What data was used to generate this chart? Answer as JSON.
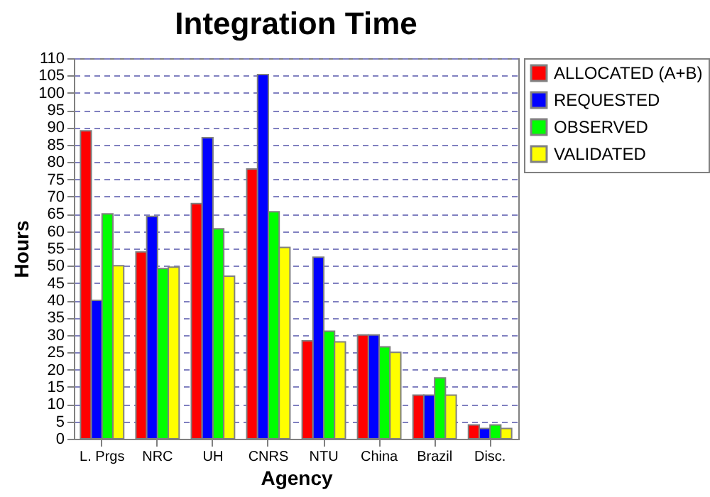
{
  "chart_data": {
    "type": "bar",
    "title": "Integration Time",
    "xlabel": "Agency",
    "ylabel": "Hours",
    "categories": [
      "L. Prgs",
      "NRC",
      "UH",
      "CNRS",
      "NTU",
      "China",
      "Brazil",
      "Disc."
    ],
    "series": [
      {
        "name": "ALLOCATED (A+B)",
        "color": "#ff0000",
        "values": [
          89,
          54,
          68,
          78,
          28.3,
          30,
          12.6,
          4
        ]
      },
      {
        "name": "REQUESTED",
        "color": "#0000ff",
        "values": [
          40,
          64.3,
          87,
          105.3,
          52.5,
          30,
          12.6,
          3
        ]
      },
      {
        "name": "OBSERVED",
        "color": "#00ff00",
        "values": [
          65,
          49.2,
          60.7,
          65.6,
          31.1,
          26.6,
          17.6,
          4
        ]
      },
      {
        "name": "VALIDATED",
        "color": "#ffff00",
        "values": [
          50,
          49.6,
          47,
          55.3,
          28,
          25,
          12.6,
          3
        ]
      }
    ],
    "ylim": [
      0,
      110
    ],
    "yticks": [
      0,
      5,
      10,
      15,
      20,
      25,
      30,
      35,
      40,
      45,
      50,
      55,
      60,
      65,
      70,
      75,
      80,
      85,
      90,
      95,
      100,
      105,
      110
    ],
    "grid": "y",
    "legend": "right"
  }
}
